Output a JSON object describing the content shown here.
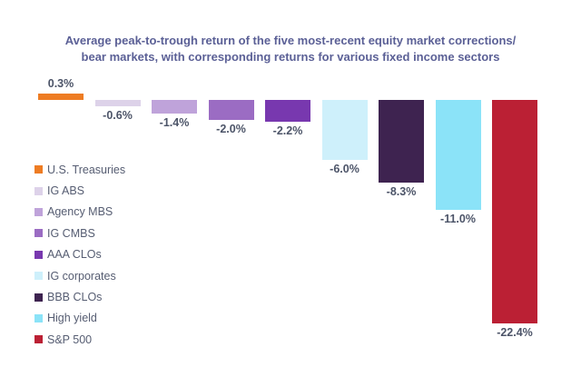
{
  "chart_data": {
    "type": "bar",
    "title": "Average peak-to-trough return of the five most-recent equity market corrections/ bear markets, with corresponding returns for various fixed income sectors",
    "title_lines": [
      "Average peak-to-trough return of the five most-recent equity market corrections/",
      "bear markets, with corresponding returns for various fixed income sectors"
    ],
    "categories": [
      "U.S. Treasuries",
      "IG ABS",
      "Agency MBS",
      "IG CMBS",
      "AAA CLOs",
      "IG corporates",
      "BBB CLOs",
      "High yield",
      "S&P 500"
    ],
    "values": [
      0.3,
      -0.6,
      -1.4,
      -2.0,
      -2.2,
      -6.0,
      -8.3,
      -11.0,
      -22.4
    ],
    "value_labels": [
      "0.3%",
      "-0.6%",
      "-1.4%",
      "-2.0%",
      "-2.2%",
      "-6.0%",
      "-8.3%",
      "-11.0%",
      "-22.4%"
    ],
    "colors": [
      "#EE7C23",
      "#DDD2E9",
      "#BFA3DA",
      "#9B6CC3",
      "#7838AF",
      "#CEF0FB",
      "#3E2350",
      "#8BE3F8",
      "#BB2034"
    ],
    "xlabel": "",
    "ylabel": "",
    "ylim": [
      -24,
      2
    ],
    "grid": false,
    "axis_lines": false,
    "data_labels": "outside-end",
    "legend_position": "middle-left",
    "legend": [
      {
        "label": "U.S. Treasuries",
        "color": "#EE7C23"
      },
      {
        "label": "IG ABS",
        "color": "#DDD2E9"
      },
      {
        "label": "Agency MBS",
        "color": "#BFA3DA"
      },
      {
        "label": "IG CMBS",
        "color": "#9B6CC3"
      },
      {
        "label": "AAA CLOs",
        "color": "#7838AF"
      },
      {
        "label": "IG corporates",
        "color": "#CEF0FB"
      },
      {
        "label": "BBB CLOs",
        "color": "#3E2350"
      },
      {
        "label": "High yield",
        "color": "#8BE3F8"
      },
      {
        "label": "S&P 500",
        "color": "#BB2034"
      }
    ],
    "text_colors": {
      "title": "#5b6096",
      "value_label": "#4c5468",
      "legend_label": "#565d72"
    }
  }
}
